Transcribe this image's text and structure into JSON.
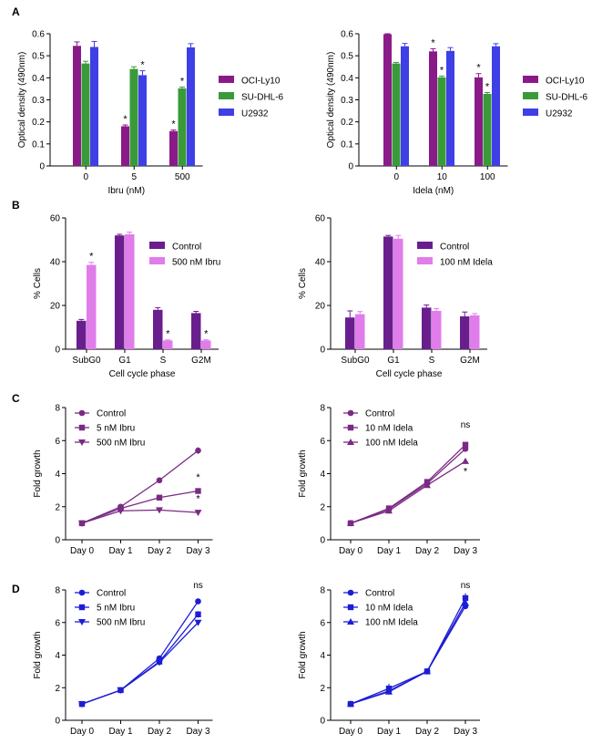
{
  "panel_letters": [
    "A",
    "B",
    "C",
    "D"
  ],
  "colors": {
    "ocily10": "#8B1A89",
    "sudhl6": "#3A9A3A",
    "u2932": "#3F3FE6",
    "control_dark": "#6A1E8E",
    "treat_light": "#E07DEA",
    "c_line": "#7A2A84",
    "d_line": "#1D1DD6"
  },
  "chart_data": [
    {
      "id": "A1",
      "type": "bar",
      "panel": "A",
      "xlabel": "Ibru (nM)",
      "ylabel": "Optical density (490nm)",
      "ylim": [
        0,
        0.6
      ],
      "yticks": [
        0,
        0.1,
        0.2,
        0.3,
        0.4,
        0.5,
        0.6
      ],
      "categories": [
        "0",
        "5",
        "500"
      ],
      "series": [
        {
          "name": "OCI-Ly10",
          "color": "#8B1A89",
          "values": [
            0.545,
            0.18,
            0.158
          ],
          "errors": [
            0.018,
            0.006,
            0.005
          ],
          "stars": [
            "",
            "*",
            "*"
          ]
        },
        {
          "name": "SU-DHL-6",
          "color": "#3A9A3A",
          "values": [
            0.465,
            0.44,
            0.352
          ],
          "errors": [
            0.01,
            0.01,
            0.006
          ],
          "stars": [
            "",
            "",
            "*"
          ]
        },
        {
          "name": "U2932",
          "color": "#3F3FE6",
          "values": [
            0.54,
            0.412,
            0.538
          ],
          "errors": [
            0.025,
            0.02,
            0.017
          ],
          "stars": [
            "",
            "*",
            ""
          ]
        }
      ]
    },
    {
      "id": "A2",
      "type": "bar",
      "panel": "A",
      "xlabel": "Idela (nM)",
      "ylabel": "Optical density (490nm)",
      "ylim": [
        0,
        0.6
      ],
      "yticks": [
        0,
        0.1,
        0.2,
        0.3,
        0.4,
        0.5,
        0.6
      ],
      "categories": [
        "0",
        "10",
        "100"
      ],
      "series": [
        {
          "name": "OCI-Ly10",
          "color": "#8B1A89",
          "values": [
            0.598,
            0.52,
            0.402
          ],
          "errors": [
            0.002,
            0.012,
            0.017
          ],
          "stars": [
            "",
            "*",
            "*"
          ]
        },
        {
          "name": "SU-DHL-6",
          "color": "#3A9A3A",
          "values": [
            0.465,
            0.402,
            0.327
          ],
          "errors": [
            0.005,
            0.006,
            0.006
          ],
          "stars": [
            "",
            "*",
            "*"
          ]
        },
        {
          "name": "U2932",
          "color": "#3F3FE6",
          "values": [
            0.543,
            0.522,
            0.543
          ],
          "errors": [
            0.013,
            0.015,
            0.012
          ],
          "stars": [
            "",
            "",
            ""
          ]
        }
      ]
    },
    {
      "id": "B1",
      "type": "bar",
      "panel": "B",
      "xlabel": "Cell cycle phase",
      "ylabel": "% Cells",
      "ylim": [
        0,
        60
      ],
      "yticks": [
        0,
        20,
        40,
        60
      ],
      "categories": [
        "SubG0",
        "G1",
        "S",
        "G2M"
      ],
      "series": [
        {
          "name": "Control",
          "color": "#6A1E8E",
          "values": [
            13,
            52,
            18,
            16.5
          ],
          "errors": [
            0.6,
            0.5,
            1.0,
            0.8
          ],
          "stars": [
            "",
            "",
            "",
            ""
          ]
        },
        {
          "name": "500 nM Ibru",
          "color": "#E07DEA",
          "values": [
            38.5,
            52.5,
            4,
            4
          ],
          "errors": [
            1.2,
            1.0,
            0.3,
            0.3
          ],
          "stars": [
            "*",
            "",
            "*",
            "*"
          ]
        }
      ]
    },
    {
      "id": "B2",
      "type": "bar",
      "panel": "B",
      "xlabel": "Cell cycle phase",
      "ylabel": "% Cells",
      "ylim": [
        0,
        60
      ],
      "yticks": [
        0,
        20,
        40,
        60
      ],
      "categories": [
        "SubG0",
        "G1",
        "S",
        "G2M"
      ],
      "series": [
        {
          "name": "Control",
          "color": "#6A1E8E",
          "values": [
            14.5,
            51.5,
            19,
            15
          ],
          "errors": [
            3.0,
            0.5,
            1.2,
            2.0
          ],
          "stars": [
            "",
            "",
            "",
            ""
          ]
        },
        {
          "name": "100 nM Idela",
          "color": "#E07DEA",
          "values": [
            16,
            50.5,
            17.5,
            15.5
          ],
          "errors": [
            1.2,
            1.5,
            1.0,
            0.8
          ],
          "stars": [
            "",
            "",
            "",
            ""
          ]
        }
      ]
    },
    {
      "id": "C1",
      "type": "line",
      "panel": "C",
      "xlabel": "",
      "ylabel": "Fold growth",
      "ylim": [
        0,
        8
      ],
      "yticks": [
        0,
        2,
        4,
        6,
        8
      ],
      "categories": [
        "Day 0",
        "Day 1",
        "Day 2",
        "Day 3"
      ],
      "series": [
        {
          "name": "Control",
          "marker": "circle",
          "color": "#7A2A84",
          "values": [
            1,
            2.0,
            3.6,
            5.4
          ],
          "errors": [
            0.05,
            0.1,
            0.1,
            0.2
          ]
        },
        {
          "name": "5 nM Ibru",
          "marker": "square",
          "color": "#7A2A84",
          "values": [
            1,
            1.9,
            2.55,
            2.95
          ],
          "errors": [
            0.05,
            0.08,
            0.08,
            0.1
          ]
        },
        {
          "name": "500 nM Ibru",
          "marker": "triangle-down",
          "color": "#7A2A84",
          "values": [
            1,
            1.75,
            1.8,
            1.65
          ],
          "errors": [
            0.05,
            0.08,
            0.05,
            0.1
          ]
        }
      ],
      "annotations": [
        {
          "text": "*",
          "x": 3,
          "y": 3.6
        },
        {
          "text": "*",
          "x": 3,
          "y": 2.3
        }
      ]
    },
    {
      "id": "C2",
      "type": "line",
      "panel": "C",
      "xlabel": "",
      "ylabel": "Fold growth",
      "ylim": [
        0,
        8
      ],
      "yticks": [
        0,
        2,
        4,
        6,
        8
      ],
      "categories": [
        "Day 0",
        "Day 1",
        "Day 2",
        "Day 3"
      ],
      "series": [
        {
          "name": "Control",
          "marker": "circle",
          "color": "#7A2A84",
          "values": [
            1,
            1.85,
            3.4,
            5.5
          ],
          "errors": [
            0.05,
            0.1,
            0.15,
            0.15
          ]
        },
        {
          "name": "10 nM Idela",
          "marker": "square",
          "color": "#7A2A84",
          "values": [
            1,
            1.9,
            3.5,
            5.75
          ],
          "errors": [
            0.05,
            0.1,
            0.15,
            0.15
          ]
        },
        {
          "name": "100 nM Idela",
          "marker": "triangle",
          "color": "#7A2A84",
          "values": [
            1,
            1.75,
            3.3,
            4.75
          ],
          "errors": [
            0.05,
            0.1,
            0.1,
            0.15
          ]
        }
      ],
      "annotations": [
        {
          "text": "ns",
          "x": 3,
          "y": 6.8
        },
        {
          "text": "*",
          "x": 3,
          "y": 3.95
        }
      ]
    },
    {
      "id": "D1",
      "type": "line",
      "panel": "D",
      "xlabel": "",
      "ylabel": "Fold growth",
      "ylim": [
        0,
        8
      ],
      "yticks": [
        0,
        2,
        4,
        6,
        8
      ],
      "categories": [
        "Day 0",
        "Day 1",
        "Day 2",
        "Day 3"
      ],
      "series": [
        {
          "name": "Control",
          "marker": "circle",
          "color": "#1D1DD6",
          "values": [
            1,
            1.85,
            3.8,
            7.3
          ],
          "errors": [
            0.05,
            0.1,
            0.1,
            0.1
          ]
        },
        {
          "name": "5 nM Ibru",
          "marker": "square",
          "color": "#1D1DD6",
          "values": [
            1,
            1.85,
            3.6,
            6.5
          ],
          "errors": [
            0.05,
            0.1,
            0.1,
            0.2
          ]
        },
        {
          "name": "500 nM Ibru",
          "marker": "triangle-down",
          "color": "#1D1DD6",
          "values": [
            1,
            1.85,
            3.55,
            6.0
          ],
          "errors": [
            0.05,
            0.1,
            0.1,
            0.15
          ]
        }
      ],
      "annotations": [
        {
          "text": "ns",
          "x": 3,
          "y": 8.1
        }
      ]
    },
    {
      "id": "D2",
      "type": "line",
      "panel": "D",
      "xlabel": "",
      "ylabel": "Fold growth",
      "ylim": [
        0,
        8
      ],
      "yticks": [
        0,
        2,
        4,
        6,
        8
      ],
      "categories": [
        "Day 0",
        "Day 1",
        "Day 2",
        "Day 3"
      ],
      "series": [
        {
          "name": "Control",
          "marker": "circle",
          "color": "#1D1DD6",
          "values": [
            1,
            1.8,
            3.0,
            7.0
          ],
          "errors": [
            0.05,
            0.1,
            0.1,
            0.15
          ]
        },
        {
          "name": "10 nM Idela",
          "marker": "square",
          "color": "#1D1DD6",
          "values": [
            1,
            1.95,
            3.0,
            7.5
          ],
          "errors": [
            0.05,
            0.3,
            0.1,
            0.3
          ]
        },
        {
          "name": "100 nM Idela",
          "marker": "triangle",
          "color": "#1D1DD6",
          "values": [
            1,
            1.75,
            3.0,
            7.2
          ],
          "errors": [
            0.05,
            0.1,
            0.1,
            0.2
          ]
        }
      ],
      "annotations": [
        {
          "text": "ns",
          "x": 3,
          "y": 8.1
        }
      ]
    }
  ]
}
